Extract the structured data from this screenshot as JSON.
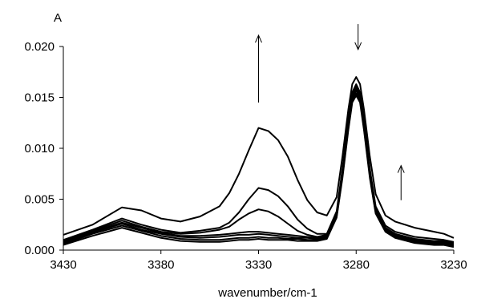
{
  "chart_data": {
    "type": "line",
    "title": "",
    "xlabel": "wavenumber/cm-1",
    "ylabel": "A",
    "xlim": [
      3430,
      3230
    ],
    "ylim": [
      0,
      0.02
    ],
    "x_reversed": true,
    "grid": false,
    "legend": "none",
    "x_ticks": [
      "3430",
      "3380",
      "3330",
      "3280",
      "3230"
    ],
    "y_ticks": [
      "0.000",
      "0.005",
      "0.010",
      "0.015",
      "0.020"
    ],
    "x_tick_values": [
      3430,
      3380,
      3330,
      3280,
      3230
    ],
    "y_tick_values": [
      0,
      0.005,
      0.01,
      0.015,
      0.02
    ],
    "line_color": "#000000",
    "series": [
      {
        "x": [
          3430,
          3415,
          3400,
          3390,
          3380,
          3370,
          3360,
          3350,
          3345,
          3340,
          3335,
          3330,
          3325,
          3320,
          3315,
          3310,
          3305,
          3300,
          3295,
          3290,
          3287,
          3284,
          3282,
          3280,
          3278,
          3276,
          3273,
          3270,
          3265,
          3260,
          3250,
          3240,
          3235,
          3230
        ],
        "values": [
          0.0015,
          0.0025,
          0.0042,
          0.0039,
          0.0031,
          0.0028,
          0.0033,
          0.0043,
          0.0056,
          0.0075,
          0.0098,
          0.012,
          0.0117,
          0.0108,
          0.0092,
          0.0069,
          0.0049,
          0.0037,
          0.0034,
          0.0052,
          0.0092,
          0.0138,
          0.0163,
          0.017,
          0.0163,
          0.0138,
          0.0092,
          0.0055,
          0.0034,
          0.0028,
          0.0022,
          0.0018,
          0.0016,
          0.0012
        ]
      },
      {
        "x": [
          3430,
          3415,
          3400,
          3390,
          3380,
          3370,
          3360,
          3350,
          3345,
          3340,
          3335,
          3330,
          3325,
          3320,
          3315,
          3310,
          3305,
          3300,
          3295,
          3290,
          3287,
          3284,
          3282,
          3280,
          3278,
          3276,
          3273,
          3270,
          3265,
          3260,
          3250,
          3240,
          3235,
          3230
        ],
        "values": [
          0.001,
          0.002,
          0.0031,
          0.0025,
          0.002,
          0.0017,
          0.0019,
          0.0022,
          0.0027,
          0.0037,
          0.005,
          0.0061,
          0.0059,
          0.0053,
          0.0043,
          0.003,
          0.0021,
          0.0016,
          0.0016,
          0.0038,
          0.008,
          0.0128,
          0.0155,
          0.0163,
          0.0155,
          0.0128,
          0.008,
          0.0043,
          0.0024,
          0.0018,
          0.0013,
          0.0011,
          0.001,
          0.0008
        ]
      },
      {
        "x": [
          3430,
          3415,
          3400,
          3390,
          3380,
          3370,
          3360,
          3350,
          3345,
          3340,
          3335,
          3330,
          3325,
          3320,
          3315,
          3310,
          3305,
          3300,
          3295,
          3290,
          3287,
          3284,
          3282,
          3280,
          3278,
          3276,
          3273,
          3270,
          3265,
          3260,
          3250,
          3240,
          3235,
          3230
        ],
        "values": [
          0.0009,
          0.0019,
          0.0029,
          0.0023,
          0.0018,
          0.0016,
          0.0017,
          0.002,
          0.0023,
          0.003,
          0.0036,
          0.004,
          0.0038,
          0.0033,
          0.0026,
          0.0019,
          0.0015,
          0.0013,
          0.0015,
          0.0036,
          0.0078,
          0.0126,
          0.0153,
          0.0161,
          0.0153,
          0.0126,
          0.0078,
          0.0041,
          0.0022,
          0.0016,
          0.0011,
          0.0009,
          0.0009,
          0.0007
        ]
      },
      {
        "x": [
          3430,
          3415,
          3400,
          3390,
          3380,
          3370,
          3360,
          3350,
          3345,
          3340,
          3335,
          3330,
          3325,
          3320,
          3315,
          3310,
          3305,
          3300,
          3295,
          3290,
          3287,
          3284,
          3282,
          3280,
          3278,
          3276,
          3273,
          3270,
          3265,
          3260,
          3250,
          3240,
          3235,
          3230
        ],
        "values": [
          0.0008,
          0.0018,
          0.0027,
          0.0022,
          0.0017,
          0.0014,
          0.0014,
          0.0015,
          0.0016,
          0.0017,
          0.0018,
          0.0018,
          0.0017,
          0.0016,
          0.0015,
          0.0014,
          0.0013,
          0.0012,
          0.0014,
          0.0035,
          0.0076,
          0.0124,
          0.0151,
          0.0159,
          0.0151,
          0.0124,
          0.0076,
          0.0039,
          0.0021,
          0.0015,
          0.001,
          0.0008,
          0.0008,
          0.0006
        ]
      },
      {
        "x": [
          3430,
          3415,
          3400,
          3390,
          3380,
          3370,
          3360,
          3350,
          3345,
          3340,
          3335,
          3330,
          3325,
          3320,
          3315,
          3310,
          3305,
          3300,
          3295,
          3290,
          3287,
          3284,
          3282,
          3280,
          3278,
          3276,
          3273,
          3270,
          3265,
          3260,
          3250,
          3240,
          3235,
          3230
        ],
        "values": [
          0.0007,
          0.0017,
          0.0026,
          0.002,
          0.0016,
          0.0013,
          0.0012,
          0.0013,
          0.0014,
          0.0015,
          0.0015,
          0.0016,
          0.0015,
          0.0014,
          0.0013,
          0.0012,
          0.0012,
          0.0011,
          0.0013,
          0.0034,
          0.0075,
          0.0122,
          0.0149,
          0.0157,
          0.0149,
          0.0122,
          0.0075,
          0.0038,
          0.002,
          0.0014,
          0.0009,
          0.0007,
          0.0007,
          0.0005
        ]
      },
      {
        "x": [
          3430,
          3415,
          3400,
          3390,
          3380,
          3370,
          3360,
          3350,
          3345,
          3340,
          3335,
          3330,
          3325,
          3320,
          3315,
          3310,
          3305,
          3300,
          3295,
          3290,
          3287,
          3284,
          3282,
          3280,
          3278,
          3276,
          3273,
          3270,
          3265,
          3260,
          3250,
          3240,
          3235,
          3230
        ],
        "values": [
          0.0006,
          0.0016,
          0.0024,
          0.0019,
          0.0014,
          0.0011,
          0.001,
          0.001,
          0.0011,
          0.0012,
          0.0012,
          0.0013,
          0.0012,
          0.0012,
          0.0011,
          0.0011,
          0.001,
          0.001,
          0.0012,
          0.0033,
          0.0073,
          0.012,
          0.0147,
          0.0154,
          0.0147,
          0.012,
          0.0073,
          0.0037,
          0.0019,
          0.0013,
          0.0008,
          0.0006,
          0.0006,
          0.0004
        ]
      },
      {
        "x": [
          3430,
          3415,
          3400,
          3390,
          3380,
          3370,
          3360,
          3350,
          3345,
          3340,
          3335,
          3330,
          3325,
          3320,
          3315,
          3310,
          3305,
          3300,
          3295,
          3290,
          3287,
          3284,
          3282,
          3280,
          3278,
          3276,
          3273,
          3270,
          3265,
          3260,
          3250,
          3240,
          3235,
          3230
        ],
        "values": [
          0.0005,
          0.0014,
          0.0022,
          0.0017,
          0.0012,
          0.0009,
          0.0008,
          0.0008,
          0.0009,
          0.001,
          0.001,
          0.0011,
          0.001,
          0.001,
          0.001,
          0.0009,
          0.0009,
          0.0009,
          0.0011,
          0.0032,
          0.0071,
          0.0118,
          0.0145,
          0.0152,
          0.0145,
          0.0118,
          0.0071,
          0.0036,
          0.0018,
          0.0012,
          0.0007,
          0.0005,
          0.0005,
          0.0003
        ]
      }
    ],
    "annotations": [
      {
        "kind": "arrow",
        "direction": "up",
        "x": 3330,
        "from": 0.0145,
        "to": 0.0211
      },
      {
        "kind": "arrow",
        "direction": "down",
        "x": 3279,
        "from": 0.0222,
        "to": 0.0197
      },
      {
        "kind": "arrow",
        "direction": "up",
        "x": 3257,
        "from": 0.0049,
        "to": 0.0083
      }
    ]
  }
}
